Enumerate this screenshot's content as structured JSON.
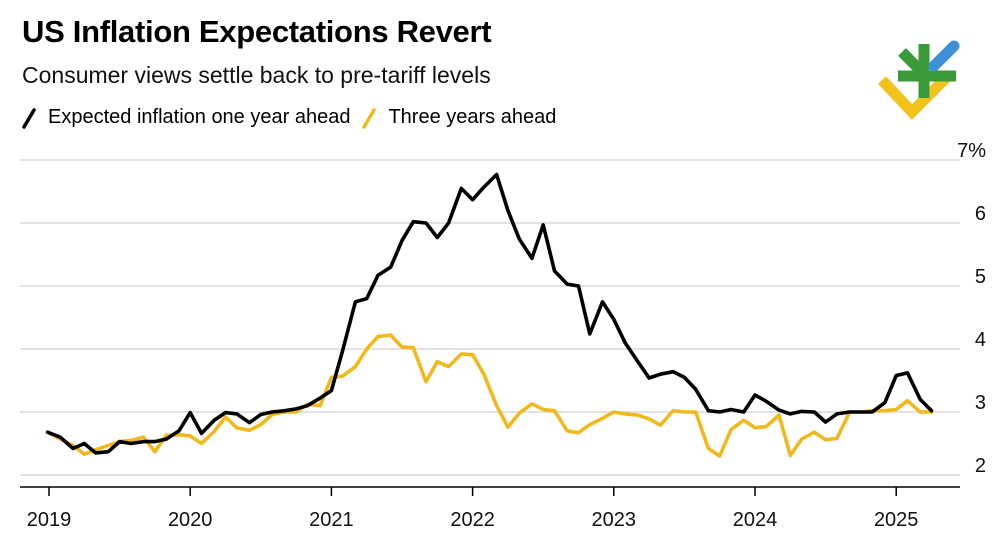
{
  "header": {
    "title": "US Inflation Expectations Revert",
    "subtitle": "Consumer views settle back to pre-tariff levels"
  },
  "legend": {
    "one_year": "Expected inflation one year ahead",
    "three_year": "Three years ahead"
  },
  "colors": {
    "one_year": "#000000",
    "three_year": "#f2b81c",
    "grid": "#d9d9d9",
    "axis": "#000000",
    "logo_green": "#3a9a3a",
    "logo_blue": "#3d8fd8",
    "logo_yellow": "#f2c21c"
  },
  "logo_icon": "brand-logo-icon",
  "chart_data": {
    "type": "line",
    "title": "US Inflation Expectations Revert",
    "subtitle": "Consumer views settle back to pre-tariff levels",
    "xlabel": "",
    "ylabel": "",
    "x_unit": "year",
    "xlim": [
      2019,
      2025.6
    ],
    "ylim": [
      1.7,
      7
    ],
    "yticks": [
      2,
      3,
      4,
      5,
      6,
      7
    ],
    "ytick_labels": [
      "2",
      "3",
      "4",
      "5",
      "6",
      "7%"
    ],
    "xticks": [
      2019,
      2020,
      2021,
      2022,
      2023,
      2024,
      2025
    ],
    "xtick_labels": [
      "2019",
      "2020",
      "2021",
      "2022",
      "2023",
      "2024",
      "2025"
    ],
    "y_axis_side": "right",
    "grid": true,
    "series": [
      {
        "name": "Expected inflation one year ahead",
        "points": [
          [
            2018.99,
            2.68
          ],
          [
            2019.08,
            2.6
          ],
          [
            2019.17,
            2.42
          ],
          [
            2019.25,
            2.5
          ],
          [
            2019.33,
            2.35
          ],
          [
            2019.42,
            2.37
          ],
          [
            2019.5,
            2.53
          ],
          [
            2019.58,
            2.5
          ],
          [
            2019.67,
            2.53
          ],
          [
            2019.75,
            2.53
          ],
          [
            2019.83,
            2.57
          ],
          [
            2019.92,
            2.7
          ],
          [
            2020.0,
            2.99
          ],
          [
            2020.08,
            2.66
          ],
          [
            2020.17,
            2.87
          ],
          [
            2020.25,
            2.99
          ],
          [
            2020.33,
            2.97
          ],
          [
            2020.42,
            2.83
          ],
          [
            2020.5,
            2.96
          ],
          [
            2020.58,
            3.0
          ],
          [
            2020.67,
            3.02
          ],
          [
            2020.75,
            3.05
          ],
          [
            2020.83,
            3.1
          ],
          [
            2020.92,
            3.22
          ],
          [
            2021.0,
            3.34
          ],
          [
            2021.08,
            3.98
          ],
          [
            2021.17,
            4.75
          ],
          [
            2021.25,
            4.8
          ],
          [
            2021.33,
            5.17
          ],
          [
            2021.42,
            5.3
          ],
          [
            2021.5,
            5.72
          ],
          [
            2021.58,
            6.02
          ],
          [
            2021.67,
            6.0
          ],
          [
            2021.75,
            5.77
          ],
          [
            2021.83,
            6.0
          ],
          [
            2021.92,
            6.55
          ],
          [
            2022.0,
            6.37
          ],
          [
            2022.08,
            6.57
          ],
          [
            2022.17,
            6.77
          ],
          [
            2022.25,
            6.2
          ],
          [
            2022.33,
            5.75
          ],
          [
            2022.42,
            5.44
          ],
          [
            2022.5,
            5.97
          ],
          [
            2022.58,
            5.24
          ],
          [
            2022.67,
            5.03
          ],
          [
            2022.75,
            5.0
          ],
          [
            2022.83,
            4.24
          ],
          [
            2022.92,
            4.75
          ],
          [
            2023.0,
            4.47
          ],
          [
            2023.08,
            4.1
          ],
          [
            2023.17,
            3.8
          ],
          [
            2023.25,
            3.54
          ],
          [
            2023.33,
            3.6
          ],
          [
            2023.42,
            3.64
          ],
          [
            2023.5,
            3.55
          ],
          [
            2023.58,
            3.36
          ],
          [
            2023.67,
            3.02
          ],
          [
            2023.75,
            3.0
          ],
          [
            2023.83,
            3.04
          ],
          [
            2023.92,
            3.0
          ],
          [
            2024.0,
            3.27
          ],
          [
            2024.08,
            3.17
          ],
          [
            2024.17,
            3.03
          ],
          [
            2024.25,
            2.97
          ],
          [
            2024.33,
            3.01
          ],
          [
            2024.42,
            3.0
          ],
          [
            2024.5,
            2.84
          ],
          [
            2024.58,
            2.97
          ],
          [
            2024.67,
            3.0
          ],
          [
            2024.75,
            3.0
          ],
          [
            2024.83,
            3.0
          ],
          [
            2024.92,
            3.15
          ],
          [
            2025.0,
            3.58
          ],
          [
            2025.08,
            3.62
          ],
          [
            2025.17,
            3.2
          ],
          [
            2025.25,
            3.02
          ]
        ]
      },
      {
        "name": "Three years ahead",
        "points": [
          [
            2018.99,
            2.68
          ],
          [
            2019.08,
            2.57
          ],
          [
            2019.17,
            2.47
          ],
          [
            2019.25,
            2.33
          ],
          [
            2019.33,
            2.4
          ],
          [
            2019.42,
            2.47
          ],
          [
            2019.5,
            2.53
          ],
          [
            2019.58,
            2.55
          ],
          [
            2019.67,
            2.6
          ],
          [
            2019.75,
            2.37
          ],
          [
            2019.83,
            2.63
          ],
          [
            2019.92,
            2.64
          ],
          [
            2020.0,
            2.62
          ],
          [
            2020.08,
            2.5
          ],
          [
            2020.17,
            2.69
          ],
          [
            2020.25,
            2.92
          ],
          [
            2020.33,
            2.75
          ],
          [
            2020.42,
            2.71
          ],
          [
            2020.5,
            2.8
          ],
          [
            2020.58,
            2.96
          ],
          [
            2020.67,
            3.0
          ],
          [
            2020.75,
            3.0
          ],
          [
            2020.83,
            3.12
          ],
          [
            2020.92,
            3.1
          ],
          [
            2021.0,
            3.55
          ],
          [
            2021.08,
            3.57
          ],
          [
            2021.17,
            3.72
          ],
          [
            2021.25,
            4.0
          ],
          [
            2021.33,
            4.2
          ],
          [
            2021.42,
            4.22
          ],
          [
            2021.5,
            4.03
          ],
          [
            2021.58,
            4.02
          ],
          [
            2021.67,
            3.48
          ],
          [
            2021.75,
            3.8
          ],
          [
            2021.83,
            3.72
          ],
          [
            2021.92,
            3.92
          ],
          [
            2022.0,
            3.91
          ],
          [
            2022.08,
            3.6
          ],
          [
            2022.17,
            3.1
          ],
          [
            2022.25,
            2.76
          ],
          [
            2022.33,
            2.98
          ],
          [
            2022.42,
            3.13
          ],
          [
            2022.5,
            3.04
          ],
          [
            2022.58,
            3.02
          ],
          [
            2022.67,
            2.7
          ],
          [
            2022.75,
            2.67
          ],
          [
            2022.83,
            2.8
          ],
          [
            2022.92,
            2.9
          ],
          [
            2023.0,
            3.0
          ],
          [
            2023.08,
            2.97
          ],
          [
            2023.17,
            2.95
          ],
          [
            2023.25,
            2.89
          ],
          [
            2023.33,
            2.79
          ],
          [
            2023.42,
            3.02
          ],
          [
            2023.5,
            3.0
          ],
          [
            2023.58,
            3.0
          ],
          [
            2023.67,
            2.42
          ],
          [
            2023.75,
            2.3
          ],
          [
            2023.83,
            2.72
          ],
          [
            2023.92,
            2.87
          ],
          [
            2024.0,
            2.75
          ],
          [
            2024.08,
            2.77
          ],
          [
            2024.17,
            2.95
          ],
          [
            2024.25,
            2.31
          ],
          [
            2024.33,
            2.57
          ],
          [
            2024.42,
            2.68
          ],
          [
            2024.5,
            2.56
          ],
          [
            2024.58,
            2.58
          ],
          [
            2024.67,
            3.0
          ],
          [
            2024.75,
            3.0
          ],
          [
            2024.83,
            3.02
          ],
          [
            2024.92,
            3.02
          ],
          [
            2025.0,
            3.04
          ],
          [
            2025.08,
            3.18
          ],
          [
            2025.17,
            3.0
          ],
          [
            2025.25,
            3.0
          ]
        ]
      }
    ]
  }
}
